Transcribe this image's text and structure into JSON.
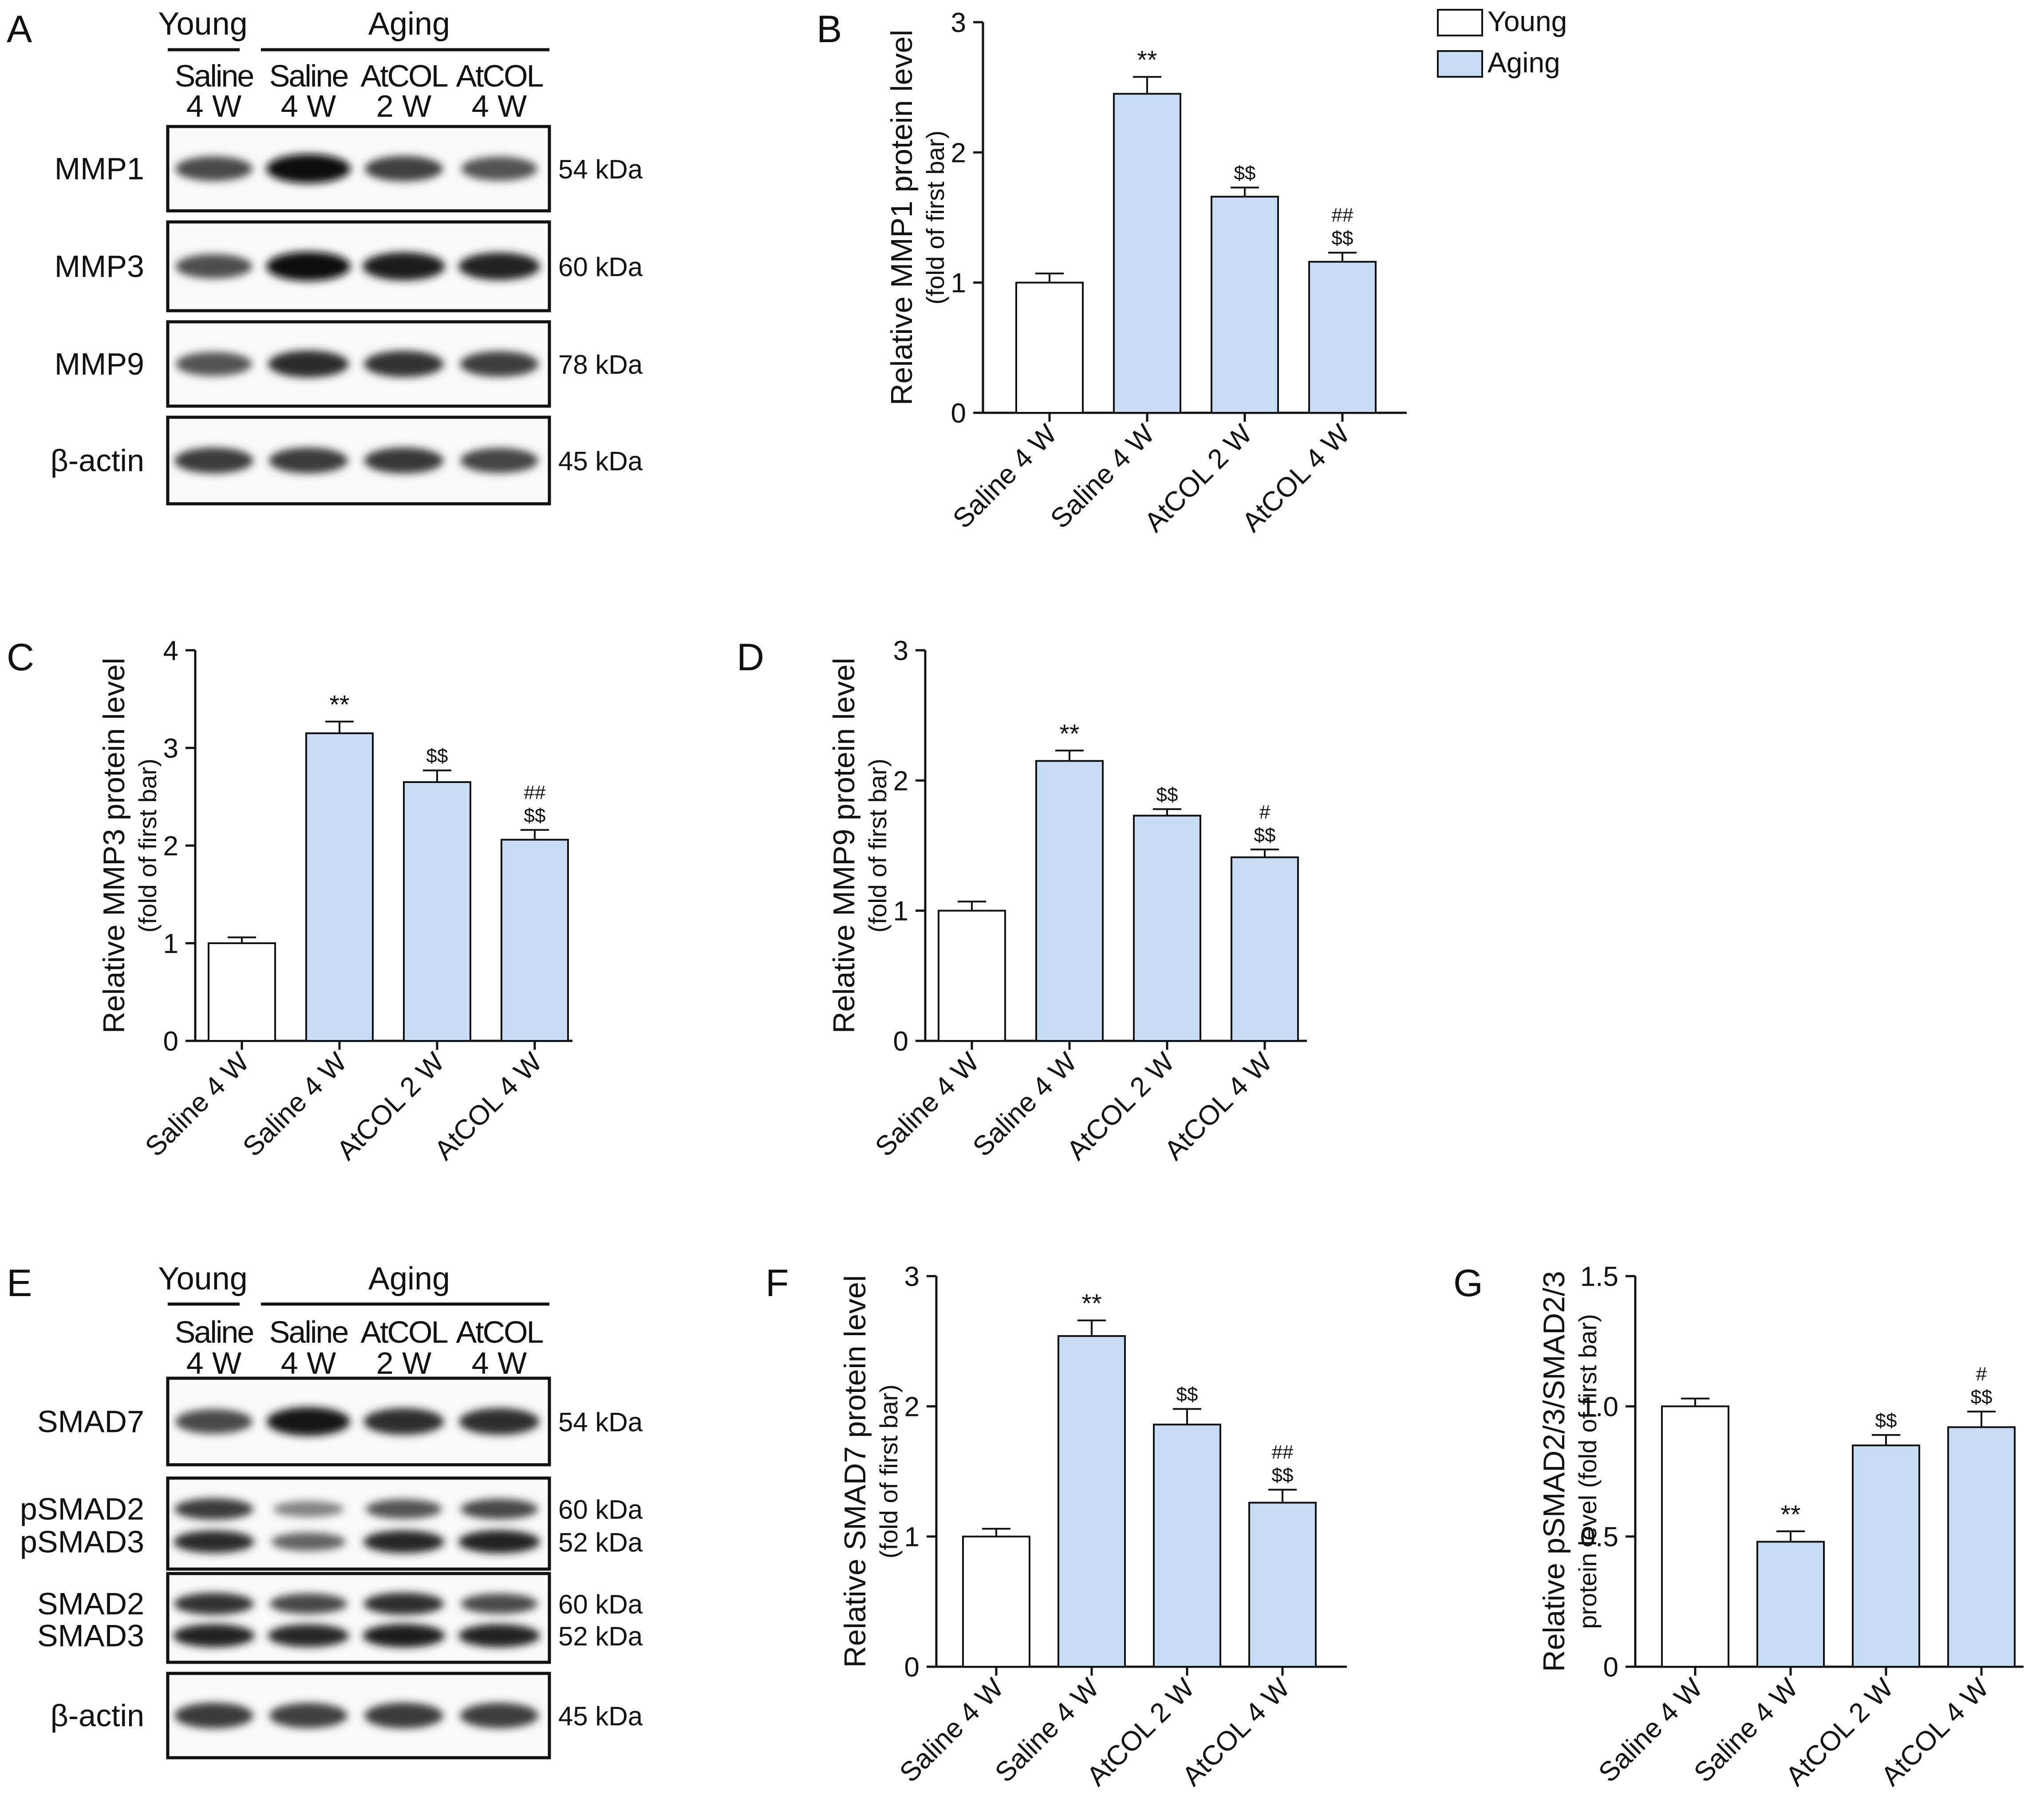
{
  "legend": {
    "items": [
      {
        "label": "Young",
        "color": "#ffffff"
      },
      {
        "label": "Aging",
        "color": "#c8dcf5"
      }
    ]
  },
  "blots": [
    {
      "letter": "A",
      "group_young": "Young",
      "group_aging": "Aging",
      "lanes": [
        {
          "line1": "Saline",
          "line2": "4 W"
        },
        {
          "line1": "Saline",
          "line2": "4 W"
        },
        {
          "line1": "AtCOL",
          "line2": "2 W"
        },
        {
          "line1": "AtCOL",
          "line2": "4 W"
        }
      ],
      "rows": [
        {
          "labels": [
            "MMP1"
          ],
          "kdas": [
            "54 kDa"
          ],
          "bands": [
            [
              0.6,
              1.0,
              0.66,
              0.55
            ]
          ]
        },
        {
          "labels": [
            "MMP3"
          ],
          "kdas": [
            "60 kDa"
          ],
          "bands": [
            [
              0.58,
              1.0,
              0.9,
              0.85
            ]
          ]
        },
        {
          "labels": [
            "MMP9"
          ],
          "kdas": [
            "78 kDa"
          ],
          "bands": [
            [
              0.55,
              0.8,
              0.75,
              0.68
            ]
          ]
        },
        {
          "labels": [
            "β-actin"
          ],
          "kdas": [
            "45 kDa"
          ],
          "bands": [
            [
              0.7,
              0.7,
              0.72,
              0.64
            ]
          ]
        }
      ]
    },
    {
      "letter": "E",
      "group_young": "Young",
      "group_aging": "Aging",
      "lanes": [
        {
          "line1": "Saline",
          "line2": "4 W"
        },
        {
          "line1": "Saline",
          "line2": "4 W"
        },
        {
          "line1": "AtCOL",
          "line2": "2 W"
        },
        {
          "line1": "AtCOL",
          "line2": "4 W"
        }
      ],
      "rows": [
        {
          "labels": [
            "SMAD7"
          ],
          "kdas": [
            "54 kDa"
          ],
          "bands": [
            [
              0.6,
              0.95,
              0.78,
              0.78
            ]
          ]
        },
        {
          "labels": [
            "pSMAD2",
            "pSMAD3"
          ],
          "kdas": [
            "60 kDa",
            "52 kDa"
          ],
          "bands": [
            [
              0.7,
              0.25,
              0.55,
              0.62
            ],
            [
              0.8,
              0.45,
              0.82,
              0.85
            ]
          ]
        },
        {
          "labels": [
            "SMAD2",
            "SMAD3"
          ],
          "kdas": [
            "60 kDa",
            "52 kDa"
          ],
          "bands": [
            [
              0.75,
              0.62,
              0.78,
              0.6
            ],
            [
              0.85,
              0.82,
              0.88,
              0.85
            ]
          ]
        },
        {
          "labels": [
            "β-actin"
          ],
          "kdas": [
            "45 kDa"
          ],
          "bands": [
            [
              0.7,
              0.66,
              0.7,
              0.68
            ]
          ]
        }
      ]
    }
  ],
  "chart_data": [
    {
      "panel": "B",
      "type": "bar",
      "ylabel": "Relative MMP1 protein level",
      "ylabel2": "(fold of first bar)",
      "categories": [
        "Saline 4 W",
        "Saline 4 W",
        "AtCOL 2 W",
        "AtCOL 4 W"
      ],
      "groups": [
        "Young",
        "Aging",
        "Aging",
        "Aging"
      ],
      "values": [
        1.0,
        2.45,
        1.66,
        1.16
      ],
      "errors": [
        0.07,
        0.13,
        0.07,
        0.07
      ],
      "annotations": [
        [],
        [
          "**"
        ],
        [
          "$$"
        ],
        [
          "##",
          "$$"
        ]
      ],
      "ylim": [
        0,
        3
      ],
      "yticks": [
        "0",
        "1",
        "2",
        "3"
      ]
    },
    {
      "panel": "C",
      "type": "bar",
      "ylabel": "Relative MMP3 protein level",
      "ylabel2": "(fold of first bar)",
      "categories": [
        "Saline 4 W",
        "Saline 4 W",
        "AtCOL 2 W",
        "AtCOL 4 W"
      ],
      "groups": [
        "Young",
        "Aging",
        "Aging",
        "Aging"
      ],
      "values": [
        1.0,
        3.15,
        2.65,
        2.06
      ],
      "errors": [
        0.06,
        0.12,
        0.12,
        0.1
      ],
      "annotations": [
        [],
        [
          "**"
        ],
        [
          "$$"
        ],
        [
          "##",
          "$$"
        ]
      ],
      "ylim": [
        0,
        4
      ],
      "yticks": [
        "0",
        "1",
        "2",
        "3",
        "4"
      ]
    },
    {
      "panel": "D",
      "type": "bar",
      "ylabel": "Relative MMP9 protein level",
      "ylabel2": "(fold of first bar)",
      "categories": [
        "Saline 4 W",
        "Saline 4 W",
        "AtCOL 2 W",
        "AtCOL 4 W"
      ],
      "groups": [
        "Young",
        "Aging",
        "Aging",
        "Aging"
      ],
      "values": [
        1.0,
        2.15,
        1.73,
        1.41
      ],
      "errors": [
        0.07,
        0.08,
        0.05,
        0.06
      ],
      "annotations": [
        [],
        [
          "**"
        ],
        [
          "$$"
        ],
        [
          "#",
          "$$"
        ]
      ],
      "ylim": [
        0,
        3
      ],
      "yticks": [
        "0",
        "1",
        "2",
        "3"
      ]
    },
    {
      "panel": "F",
      "type": "bar",
      "ylabel": "Relative SMAD7 protein level",
      "ylabel2": "(fold of first bar)",
      "categories": [
        "Saline 4 W",
        "Saline 4 W",
        "AtCOL 2 W",
        "AtCOL 4 W"
      ],
      "groups": [
        "Young",
        "Aging",
        "Aging",
        "Aging"
      ],
      "values": [
        1.0,
        2.54,
        1.86,
        1.26
      ],
      "errors": [
        0.06,
        0.12,
        0.12,
        0.1
      ],
      "annotations": [
        [],
        [
          "**"
        ],
        [
          "$$"
        ],
        [
          "##",
          "$$"
        ]
      ],
      "ylim": [
        0,
        3
      ],
      "yticks": [
        "0",
        "1",
        "2",
        "3"
      ]
    },
    {
      "panel": "G",
      "type": "bar",
      "ylabel": "Relative pSMAD2/3/SMAD2/3",
      "ylabel2": "protein level (fold of first bar)",
      "categories": [
        "Saline 4 W",
        "Saline 4 W",
        "AtCOL 2 W",
        "AtCOL 4 W"
      ],
      "groups": [
        "Young",
        "Aging",
        "Aging",
        "Aging"
      ],
      "values": [
        1.0,
        0.48,
        0.85,
        0.92
      ],
      "errors": [
        0.03,
        0.04,
        0.04,
        0.06
      ],
      "annotations": [
        [],
        [
          "**"
        ],
        [
          "$$"
        ],
        [
          "#",
          "$$"
        ]
      ],
      "ylim": [
        0,
        1.5
      ],
      "yticks": [
        "0",
        "0.5",
        "1.0",
        "1.5"
      ]
    }
  ]
}
